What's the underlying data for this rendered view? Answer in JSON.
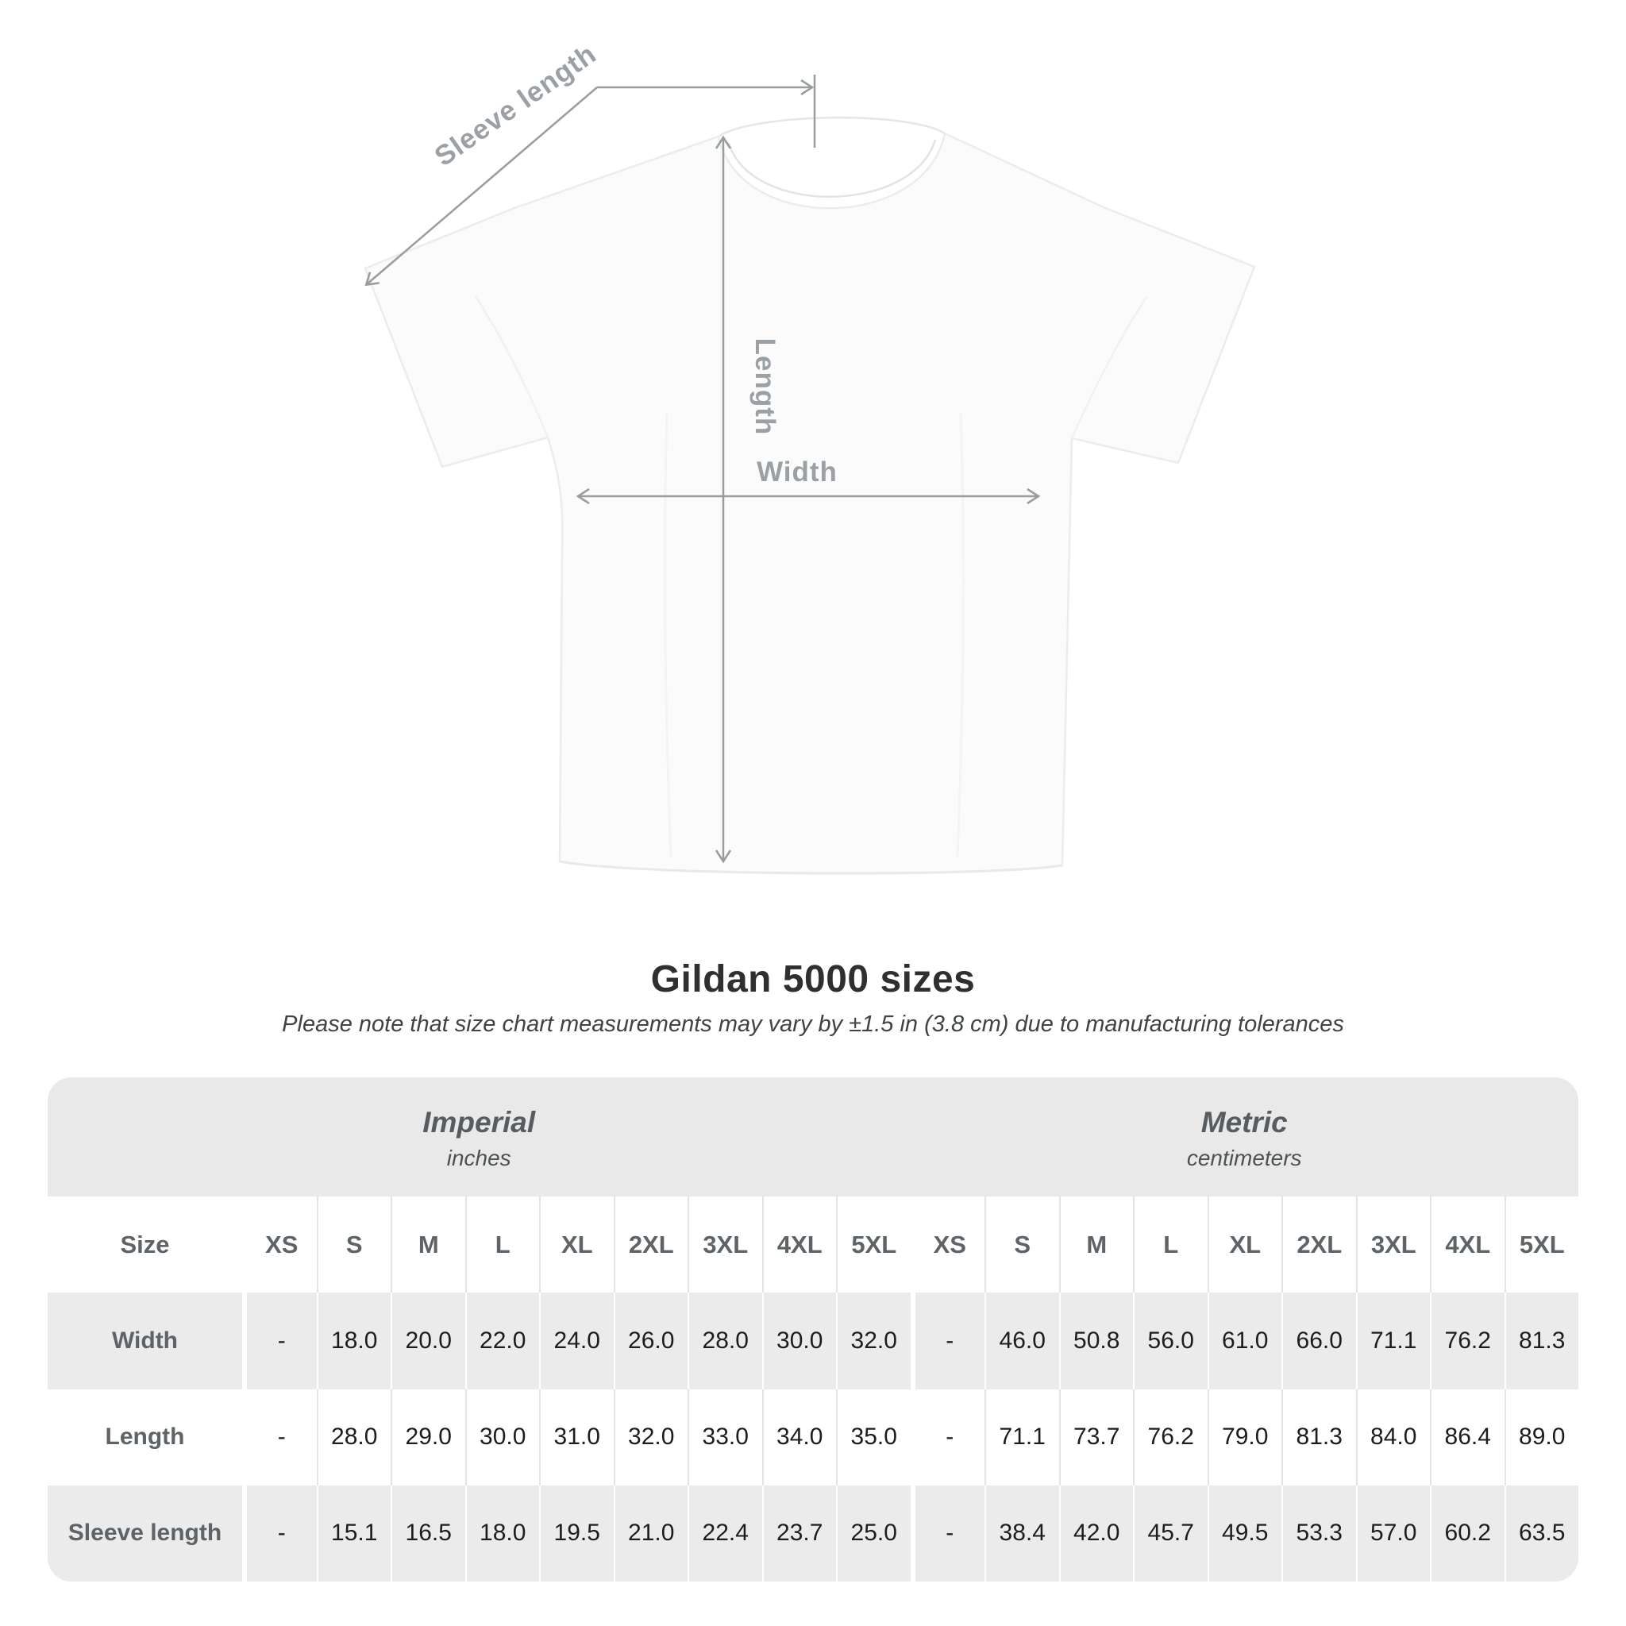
{
  "annotations": {
    "sleeve_label": "Sleeve length",
    "length_label": "Length",
    "width_label": "Width",
    "line_color": "#989da0",
    "label_color": "#9aa0a3"
  },
  "title": "Gildan 5000 sizes",
  "subtitle": "Please note that size chart measurements may vary by ±1.5 in (3.8 cm) due to manufacturing tolerances",
  "table": {
    "unit_groups": [
      {
        "label": "Imperial",
        "sublabel": "inches"
      },
      {
        "label": "Metric",
        "sublabel": "centimeters"
      }
    ],
    "size_header": "Size",
    "sizes": [
      "XS",
      "S",
      "M",
      "L",
      "XL",
      "2XL",
      "3XL",
      "4XL",
      "5XL"
    ],
    "rows": [
      {
        "label": "Width",
        "imperial": [
          "-",
          "18.0",
          "20.0",
          "22.0",
          "24.0",
          "26.0",
          "28.0",
          "30.0",
          "32.0"
        ],
        "metric": [
          "-",
          "46.0",
          "50.8",
          "56.0",
          "61.0",
          "66.0",
          "71.1",
          "76.2",
          "81.3"
        ]
      },
      {
        "label": "Length",
        "imperial": [
          "-",
          "28.0",
          "29.0",
          "30.0",
          "31.0",
          "32.0",
          "33.0",
          "34.0",
          "35.0"
        ],
        "metric": [
          "-",
          "71.1",
          "73.7",
          "76.2",
          "79.0",
          "81.3",
          "84.0",
          "86.4",
          "89.0"
        ]
      },
      {
        "label": "Sleeve length",
        "imperial": [
          "-",
          "15.1",
          "16.5",
          "18.0",
          "19.5",
          "21.0",
          "22.4",
          "23.7",
          "25.0"
        ],
        "metric": [
          "-",
          "38.4",
          "42.0",
          "45.7",
          "49.5",
          "53.3",
          "57.0",
          "60.2",
          "63.5"
        ]
      }
    ],
    "colors": {
      "band": "#e9e9e9",
      "stripe": "#ebebeb",
      "header_text": "#5d6366",
      "value_text": "#1d1d1d"
    }
  },
  "chart_data": {
    "type": "table",
    "title": "Gildan 5000 sizes",
    "note": "Measurements may vary by ±1.5 in (3.8 cm) due to manufacturing tolerances",
    "units": [
      "inches",
      "centimeters"
    ],
    "sizes": [
      "XS",
      "S",
      "M",
      "L",
      "XL",
      "2XL",
      "3XL",
      "4XL",
      "5XL"
    ],
    "rows": [
      {
        "measurement": "Width",
        "inches": [
          "-",
          18.0,
          20.0,
          22.0,
          24.0,
          26.0,
          28.0,
          30.0,
          32.0
        ],
        "centimeters": [
          "-",
          46.0,
          50.8,
          56.0,
          61.0,
          66.0,
          71.1,
          76.2,
          81.3
        ]
      },
      {
        "measurement": "Length",
        "inches": [
          "-",
          28.0,
          29.0,
          30.0,
          31.0,
          32.0,
          33.0,
          34.0,
          35.0
        ],
        "centimeters": [
          "-",
          71.1,
          73.7,
          76.2,
          79.0,
          81.3,
          84.0,
          86.4,
          89.0
        ]
      },
      {
        "measurement": "Sleeve length",
        "inches": [
          "-",
          15.1,
          16.5,
          18.0,
          19.5,
          21.0,
          22.4,
          23.7,
          25.0
        ],
        "centimeters": [
          "-",
          38.4,
          42.0,
          45.7,
          49.5,
          53.3,
          57.0,
          60.2,
          63.5
        ]
      }
    ]
  }
}
